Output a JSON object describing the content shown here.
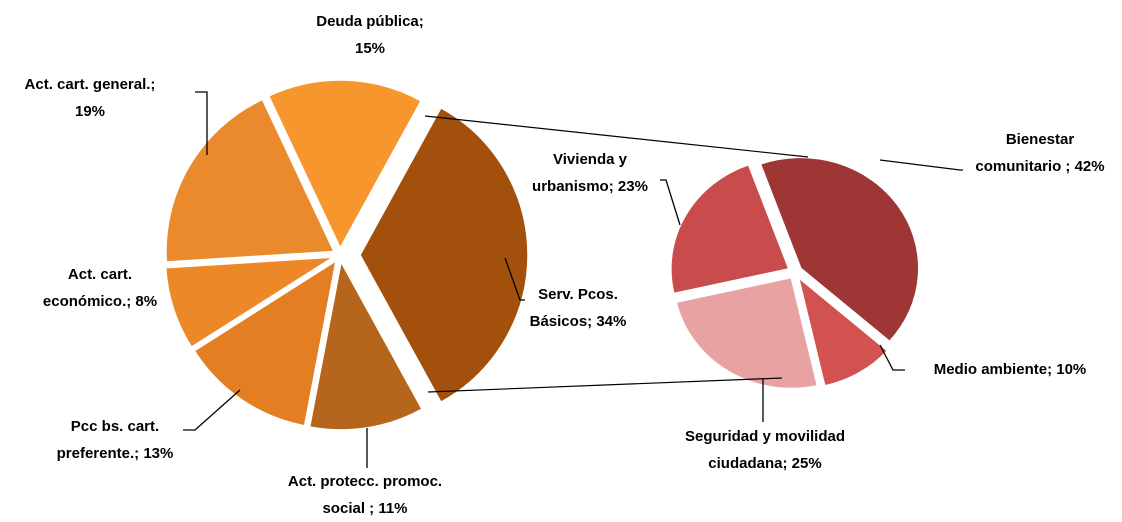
{
  "chart_data": [
    {
      "type": "pie",
      "categories": [
        "Deuda pública;",
        "Serv. Pcos. Básicos;",
        "Act. protecc. promoc. social ;",
        "Pcc bs. cart. preferente.;",
        "Act. cart. económico.;",
        "Act. cart. general.;"
      ],
      "values": [
        15,
        34,
        11,
        13,
        8,
        19
      ],
      "value_labels": [
        "15%",
        "34%",
        "11%",
        "13%",
        "8%",
        "19%"
      ],
      "colors": [
        "#f7962c",
        "#a2500c",
        "#b6661c",
        "#e47e22",
        "#ec8828",
        "#ea8a2c"
      ]
    },
    {
      "type": "pie",
      "categories": [
        "Bienestar comunitario ;",
        "Medio ambiente;",
        "Seguridad y movilidad ciudadana;",
        "Vivienda y urbanismo;"
      ],
      "values": [
        42,
        10,
        25,
        23
      ],
      "value_labels": [
        "42%",
        "10%",
        "25%",
        "23%"
      ],
      "colors": [
        "#9e3636",
        "#d25252",
        "#e8a2a2",
        "#c84c4c"
      ]
    }
  ]
}
